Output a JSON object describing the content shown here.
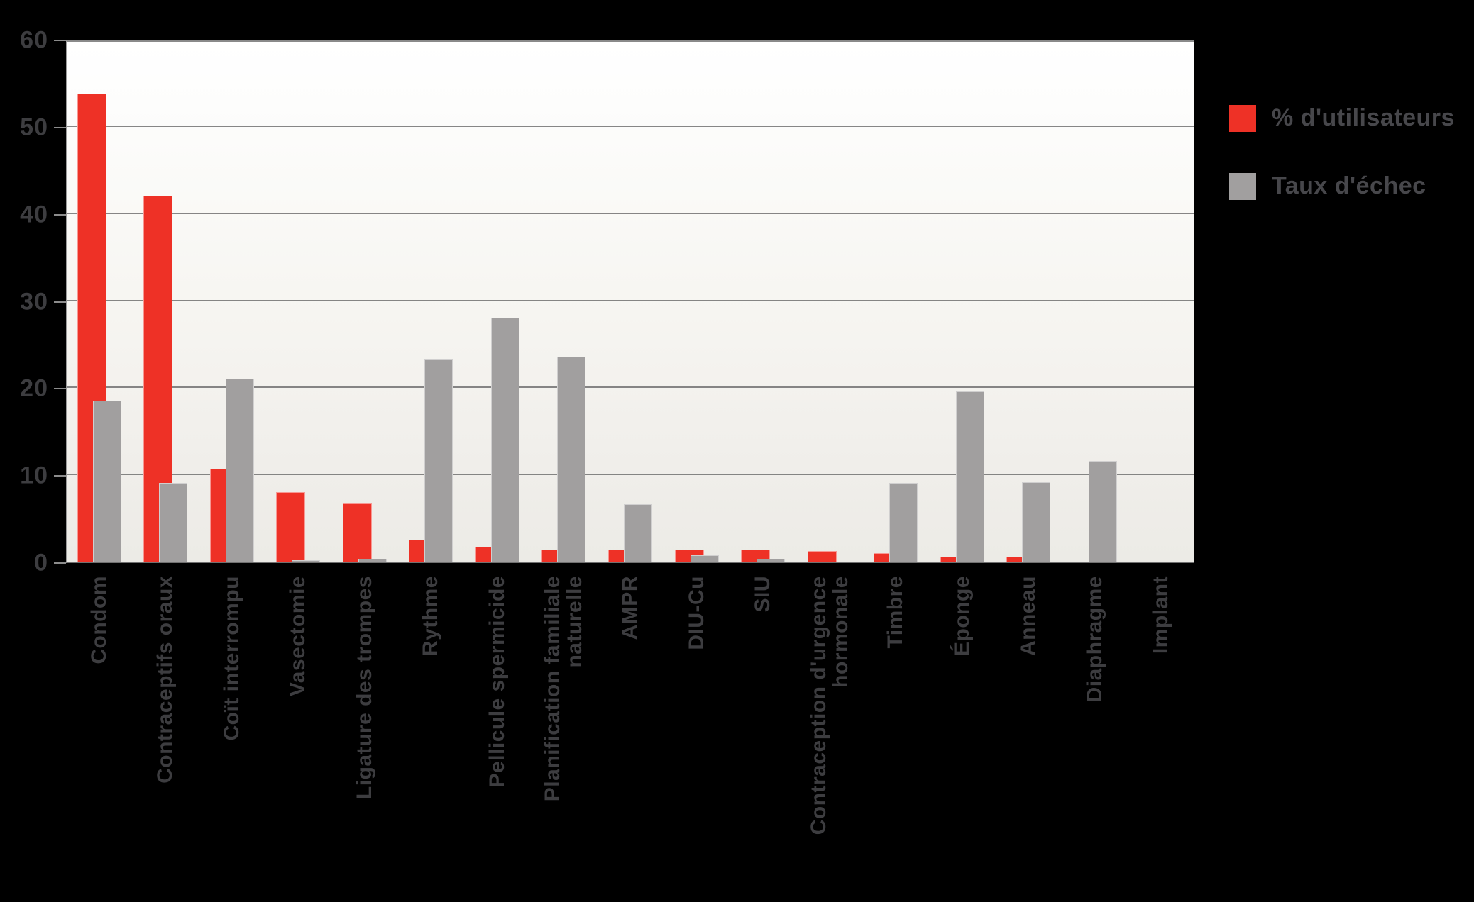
{
  "chart_data": {
    "type": "bar",
    "title": "",
    "xlabel": "",
    "ylabel": "",
    "ylim": [
      0,
      60
    ],
    "yticks": [
      0,
      10,
      20,
      30,
      40,
      50,
      60
    ],
    "grid": "horizontal",
    "legend_position": "top-right",
    "categories": [
      "Condom",
      "Contraceptifs oraux",
      "Coït interrompu",
      "Vasectomie",
      "Ligature des trompes",
      "Rythme",
      "Pellicule spermicide",
      "Planification familiale naturelle",
      "AMPR",
      "DIU-Cu",
      "SIU",
      "Contraception d'urgence hormonale",
      "Timbre",
      "Éponge",
      "Anneau",
      "Diaphragme",
      "Implant"
    ],
    "category_display_lines": [
      [
        "Condom"
      ],
      [
        "Contraceptifs oraux"
      ],
      [
        "Coït interrompu"
      ],
      [
        "Vasectomie"
      ],
      [
        "Ligature des trompes"
      ],
      [
        "Rythme"
      ],
      [
        "Pellicule spermicide"
      ],
      [
        "Planification familiale",
        "naturelle"
      ],
      [
        "AMPR"
      ],
      [
        "DIU-Cu"
      ],
      [
        "SIU"
      ],
      [
        "Contraception d'urgence",
        "hormonale"
      ],
      [
        "Timbre"
      ],
      [
        "Éponge"
      ],
      [
        "Anneau"
      ],
      [
        "Diaphragme"
      ],
      [
        "Implant"
      ]
    ],
    "series": [
      {
        "name": "% d'utilisateurs",
        "color": "#ee3126",
        "values": [
          53.7,
          42,
          10.7,
          8,
          6.7,
          2.5,
          1.7,
          1.4,
          1.4,
          1.4,
          1.4,
          1.2,
          1.0,
          0.6,
          0.6,
          0,
          0
        ]
      },
      {
        "name": "Taux d'échec",
        "color": "#a19f9f",
        "values": [
          18.5,
          9,
          21,
          0.15,
          0.3,
          23.3,
          28,
          23.5,
          6.6,
          0.7,
          0.3,
          0,
          9,
          19.5,
          9.1,
          11.6,
          0
        ]
      }
    ]
  },
  "colors": {
    "background": "#000000",
    "plot_background_top": "#ffffff",
    "plot_background_bottom": "#ecebe6",
    "gridline": "#717171",
    "axis_line": "#9b9b9b",
    "tick": "#8c8c8c",
    "axis_text": "#3d3d40",
    "legend_text": "#47474b",
    "bar_users": "#ee3126",
    "bar_failure": "#a19f9f"
  }
}
